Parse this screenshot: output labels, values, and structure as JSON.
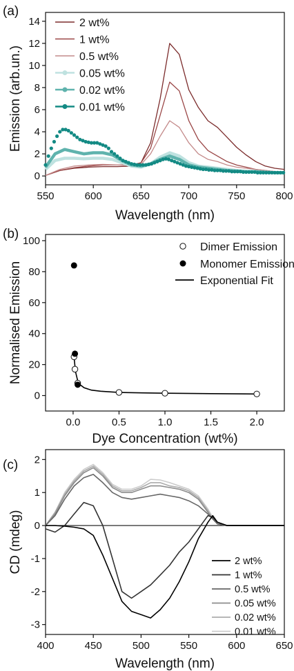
{
  "colors": {
    "axis": "#111111",
    "panel_a": [
      "#7b2b2b",
      "#9a4646",
      "#c48a8a",
      "#bfe2e0",
      "#5fb3ad",
      "#138a84"
    ],
    "panel_b": {
      "dimer": "#ffffff",
      "monomer": "#000000",
      "fit": "#000000"
    },
    "panel_c": [
      "#000000",
      "#333333",
      "#666666",
      "#8c8c8c",
      "#ababab",
      "#cccccc"
    ]
  },
  "chart_data": [
    {
      "panel_label": "(a)",
      "type": "line",
      "xlabel": "Wavelength (nm)",
      "ylabel": "Emission (arb.un.)",
      "xlim": [
        550,
        800
      ],
      "ylim": [
        -0.8,
        14.8
      ],
      "xticks": [
        "550",
        "600",
        "650",
        "700",
        "750",
        "800"
      ],
      "yticks": [
        "0",
        "2",
        "4",
        "6",
        "8",
        "10",
        "12",
        "14"
      ],
      "legend_position": "top-left",
      "series": [
        {
          "name": "2 wt%",
          "style": "line",
          "x": [
            550,
            565,
            580,
            595,
            610,
            625,
            640,
            650,
            660,
            670,
            680,
            690,
            700,
            710,
            720,
            730,
            740,
            750,
            760,
            770,
            780,
            790,
            800
          ],
          "y": [
            0.05,
            0.5,
            0.7,
            0.8,
            0.85,
            0.85,
            0.9,
            1.2,
            3.0,
            7.0,
            12.0,
            11.0,
            7.8,
            6.2,
            5.0,
            4.4,
            3.5,
            2.6,
            1.9,
            1.3,
            0.9,
            0.7,
            0.6
          ]
        },
        {
          "name": "1 wt%",
          "style": "line",
          "x": [
            550,
            565,
            580,
            595,
            610,
            625,
            640,
            650,
            660,
            670,
            680,
            690,
            700,
            710,
            720,
            730,
            740,
            750,
            760,
            770,
            780,
            790,
            800
          ],
          "y": [
            0.05,
            0.5,
            0.75,
            0.9,
            1.0,
            1.0,
            1.0,
            1.2,
            2.5,
            5.5,
            8.5,
            7.7,
            5.0,
            3.3,
            2.3,
            1.8,
            1.3,
            1.0,
            0.8,
            0.6,
            0.5,
            0.4,
            0.3
          ]
        },
        {
          "name": "0.5 wt%",
          "style": "line",
          "x": [
            550,
            565,
            580,
            595,
            610,
            625,
            640,
            650,
            660,
            670,
            680,
            690,
            700,
            710,
            720,
            730,
            740,
            750,
            760,
            770,
            780,
            790,
            800
          ],
          "y": [
            0.05,
            0.6,
            0.9,
            1.0,
            1.05,
            1.0,
            0.95,
            1.05,
            2.0,
            3.6,
            5.0,
            4.4,
            3.0,
            2.0,
            1.5,
            1.3,
            1.0,
            0.8,
            0.7,
            0.6,
            0.5,
            0.4,
            0.3
          ]
        },
        {
          "name": "0.05 wt%",
          "style": "band",
          "x": [
            550,
            560,
            570,
            580,
            590,
            600,
            610,
            620,
            630,
            640,
            650,
            660,
            670,
            680,
            690,
            700,
            710,
            720,
            730,
            740,
            750,
            760,
            770,
            780,
            790,
            800
          ],
          "y": [
            0.6,
            1.4,
            1.6,
            1.6,
            1.55,
            1.6,
            1.6,
            1.5,
            1.2,
            0.9,
            0.8,
            1.1,
            1.7,
            2.1,
            1.8,
            1.2,
            0.9,
            0.8,
            0.7,
            0.6,
            0.5,
            0.4,
            0.4,
            0.35,
            0.3,
            0.3
          ]
        },
        {
          "name": "0.02 wt%",
          "style": "band",
          "x": [
            550,
            560,
            570,
            580,
            590,
            600,
            610,
            620,
            630,
            640,
            650,
            660,
            670,
            680,
            690,
            700,
            710,
            720,
            730,
            740,
            750,
            760,
            770,
            780,
            790,
            800
          ],
          "y": [
            0.8,
            2.0,
            2.4,
            2.2,
            2.0,
            2.1,
            2.1,
            1.9,
            1.4,
            1.0,
            0.9,
            1.1,
            1.5,
            1.8,
            1.5,
            1.0,
            0.8,
            0.7,
            0.6,
            0.5,
            0.45,
            0.4,
            0.4,
            0.35,
            0.3,
            0.3
          ]
        },
        {
          "name": "0.01 wt%",
          "style": "dots",
          "x": [
            550,
            553,
            556,
            559,
            562,
            565,
            568,
            571,
            574,
            577,
            580,
            583,
            586,
            589,
            592,
            595,
            598,
            601,
            604,
            607,
            610,
            613,
            616,
            619,
            622,
            625,
            628,
            631,
            634,
            637,
            640,
            643,
            646,
            649,
            652,
            655,
            658,
            661,
            664,
            667,
            670,
            673,
            676,
            679,
            682,
            685,
            688,
            691,
            694,
            697,
            700,
            703,
            706,
            709,
            712,
            715,
            718,
            721,
            724,
            727,
            730,
            733,
            736,
            739,
            742,
            745,
            748,
            751,
            754,
            757,
            760,
            763,
            766,
            769,
            772,
            775,
            778,
            781,
            784,
            787,
            790,
            793,
            796,
            799
          ],
          "y": [
            1.0,
            1.8,
            2.5,
            3.1,
            3.6,
            4.0,
            4.2,
            4.2,
            4.1,
            3.9,
            3.7,
            3.5,
            3.3,
            3.2,
            3.1,
            3.05,
            3.0,
            3.0,
            3.0,
            2.9,
            2.8,
            2.7,
            2.5,
            2.2,
            2.0,
            1.8,
            1.6,
            1.4,
            1.3,
            1.2,
            1.1,
            1.05,
            1.0,
            1.0,
            1.0,
            1.0,
            1.05,
            1.1,
            1.2,
            1.3,
            1.4,
            1.5,
            1.55,
            1.5,
            1.4,
            1.3,
            1.2,
            1.1,
            1.0,
            0.9,
            0.85,
            0.8,
            0.75,
            0.7,
            0.65,
            0.6,
            0.6,
            0.55,
            0.55,
            0.5,
            0.5,
            0.5,
            0.45,
            0.45,
            0.45,
            0.4,
            0.4,
            0.4,
            0.4,
            0.35,
            0.35,
            0.35,
            0.35,
            0.35,
            0.3,
            0.3,
            0.3,
            0.3,
            0.3,
            0.3,
            0.3,
            0.3,
            0.3,
            0.3
          ]
        }
      ]
    },
    {
      "panel_label": "(b)",
      "type": "scatter",
      "xlabel": "Dye Concentration (wt%)",
      "ylabel": "Normalised Emission",
      "xlim": [
        -0.3,
        2.3
      ],
      "ylim": [
        -10,
        104
      ],
      "xticks": [
        "0.0",
        "0.5",
        "1.0",
        "1.5",
        "2.0"
      ],
      "yticks": [
        "0",
        "20",
        "40",
        "60",
        "80",
        "100"
      ],
      "legend_position": "top-right",
      "series": [
        {
          "name": "Dimer Emission",
          "style": "open-circle",
          "x": [
            0.01,
            0.02,
            0.05,
            0.5,
            1.0,
            2.0
          ],
          "y": [
            25,
            17,
            8,
            2,
            1.5,
            1
          ]
        },
        {
          "name": "Monomer Emission",
          "style": "filled-circle",
          "x": [
            0.01,
            0.02,
            0.05
          ],
          "y": [
            84,
            27,
            7
          ]
        },
        {
          "name": "Exponential Fit",
          "style": "line",
          "x": [
            0.01,
            0.02,
            0.03,
            0.05,
            0.08,
            0.12,
            0.2,
            0.3,
            0.5,
            0.75,
            1.0,
            1.5,
            2.0
          ],
          "y": [
            25.0,
            19.0,
            14.5,
            9.5,
            6.8,
            5.0,
            3.5,
            2.8,
            2.0,
            1.7,
            1.5,
            1.2,
            1.0
          ]
        }
      ]
    },
    {
      "panel_label": "(c)",
      "type": "line",
      "xlabel": "Wavelength (nm)",
      "ylabel": "CD (mdeg)",
      "xlim": [
        400,
        650
      ],
      "ylim": [
        -3.3,
        2.3
      ],
      "xticks": [
        "400",
        "450",
        "500",
        "550",
        "600",
        "650"
      ],
      "yticks": [
        "-3",
        "-2",
        "-1",
        "0",
        "1",
        "2"
      ],
      "legend_position": "bottom-right",
      "series": [
        {
          "name": "2 wt%",
          "x": [
            400,
            410,
            420,
            430,
            440,
            450,
            460,
            470,
            480,
            490,
            500,
            510,
            520,
            530,
            540,
            550,
            560,
            570,
            575,
            580,
            590,
            600,
            610,
            620,
            630,
            640,
            650
          ],
          "y": [
            0.0,
            0.0,
            -0.02,
            -0.05,
            -0.1,
            -0.3,
            -0.9,
            -1.6,
            -2.3,
            -2.6,
            -2.7,
            -2.8,
            -2.55,
            -2.2,
            -1.7,
            -1.1,
            -0.4,
            0.1,
            0.3,
            0.1,
            0.0,
            0.0,
            0.0,
            0.0,
            0.0,
            0.0,
            0.0
          ]
        },
        {
          "name": "1 wt%",
          "x": [
            400,
            410,
            420,
            430,
            440,
            450,
            460,
            470,
            480,
            490,
            500,
            510,
            520,
            530,
            540,
            550,
            560,
            570,
            575,
            580,
            590,
            600,
            610,
            620,
            630,
            640,
            650
          ],
          "y": [
            -0.1,
            -0.2,
            0.0,
            0.35,
            0.7,
            0.6,
            0.0,
            -1.0,
            -2.0,
            -2.2,
            -2.0,
            -1.8,
            -1.5,
            -1.2,
            -0.8,
            -0.5,
            -0.1,
            0.3,
            0.25,
            0.1,
            0.0,
            0.0,
            0.0,
            0.0,
            0.0,
            0.0,
            0.0
          ]
        },
        {
          "name": "0.5 wt%",
          "x": [
            400,
            410,
            420,
            430,
            440,
            450,
            460,
            470,
            480,
            490,
            500,
            510,
            520,
            530,
            540,
            550,
            560,
            570,
            575,
            580,
            590,
            600,
            610,
            620,
            630,
            640,
            650
          ],
          "y": [
            0.0,
            0.3,
            0.8,
            1.2,
            1.45,
            1.55,
            1.3,
            1.0,
            0.85,
            0.8,
            0.85,
            0.9,
            0.95,
            0.9,
            0.85,
            0.75,
            0.6,
            0.35,
            0.2,
            0.05,
            0.0,
            0.0,
            0.0,
            0.0,
            0.0,
            0.0,
            0.0
          ]
        },
        {
          "name": "0.05 wt%",
          "x": [
            400,
            410,
            420,
            430,
            440,
            450,
            460,
            470,
            480,
            490,
            500,
            510,
            520,
            530,
            540,
            550,
            560,
            570,
            575,
            580,
            590,
            600,
            610,
            620,
            630,
            640,
            650
          ],
          "y": [
            0.0,
            0.35,
            0.9,
            1.3,
            1.6,
            1.75,
            1.5,
            1.15,
            1.0,
            1.0,
            1.1,
            1.2,
            1.2,
            1.15,
            1.1,
            1.0,
            0.8,
            0.4,
            0.2,
            0.05,
            0.0,
            0.0,
            0.0,
            0.0,
            0.0,
            0.0,
            0.0
          ]
        },
        {
          "name": "0.02 wt%",
          "x": [
            400,
            410,
            420,
            430,
            440,
            450,
            460,
            470,
            480,
            490,
            500,
            510,
            520,
            530,
            540,
            550,
            560,
            570,
            575,
            580,
            590,
            600,
            610,
            620,
            630,
            640,
            650
          ],
          "y": [
            0.0,
            0.4,
            0.95,
            1.35,
            1.65,
            1.8,
            1.55,
            1.2,
            1.05,
            1.05,
            1.15,
            1.3,
            1.3,
            1.2,
            1.15,
            1.05,
            0.85,
            0.45,
            0.2,
            0.05,
            0.0,
            0.0,
            0.0,
            0.0,
            0.0,
            0.0,
            0.0
          ]
        },
        {
          "name": "0.01 wt%",
          "x": [
            400,
            410,
            420,
            430,
            440,
            450,
            460,
            470,
            480,
            490,
            500,
            510,
            520,
            530,
            540,
            550,
            560,
            570,
            575,
            580,
            590,
            600,
            610,
            620,
            630,
            640,
            650
          ],
          "y": [
            0.0,
            0.4,
            1.0,
            1.4,
            1.7,
            1.85,
            1.6,
            1.25,
            1.1,
            1.1,
            1.2,
            1.4,
            1.38,
            1.3,
            1.2,
            1.1,
            0.9,
            0.5,
            0.25,
            0.05,
            0.0,
            0.0,
            0.0,
            0.0,
            0.0,
            0.0,
            0.0
          ]
        }
      ]
    }
  ]
}
